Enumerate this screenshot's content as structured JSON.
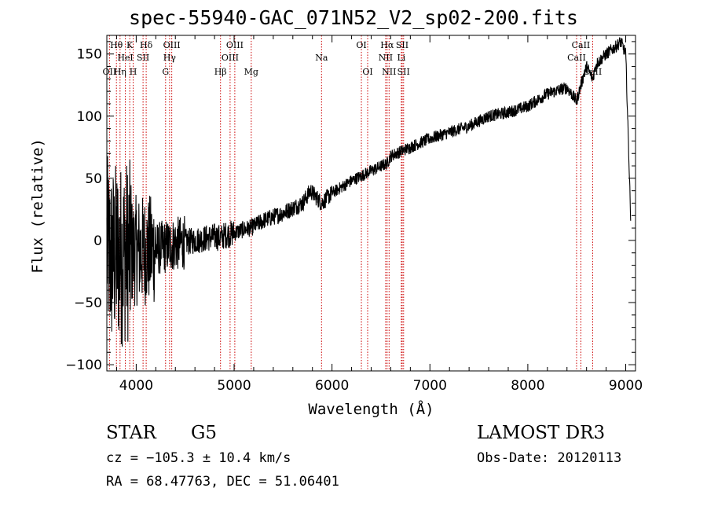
{
  "header": {
    "title": "spec-55940-GAC_071N52_V2_sp02-200.fits"
  },
  "info": {
    "object_class": "STAR",
    "subclass": "G5",
    "survey": "LAMOST DR3",
    "cz": "cz = −105.3 ± 10.4 km/s",
    "obs_date": "Obs-Date: 20120113",
    "coords": "RA =  68.47763, DEC =  51.06401"
  },
  "chart_data": {
    "type": "line",
    "title": "spec-55940-GAC_071N52_V2_sp02-200.fits",
    "xlabel": "Wavelength (Å)",
    "ylabel": "Flux (relative)",
    "xlim": [
      3700,
      9100
    ],
    "ylim": [
      -105,
      165
    ],
    "xticks": [
      4000,
      5000,
      6000,
      7000,
      8000,
      9000
    ],
    "yticks": [
      -100,
      -50,
      0,
      50,
      100,
      150
    ],
    "grid": false,
    "series_color": "#000000",
    "marker_color": "#cc0000",
    "spectrum": {
      "name": "flux",
      "x": [
        3700,
        3750,
        3800,
        3850,
        3900,
        3950,
        4000,
        4100,
        4200,
        4300,
        4400,
        4600,
        4800,
        4861,
        4900,
        5000,
        5100,
        5172,
        5300,
        5500,
        5700,
        5780,
        5893,
        6000,
        6200,
        6400,
        6563,
        6600,
        6800,
        7000,
        7200,
        7400,
        7600,
        7800,
        8000,
        8200,
        8400,
        8498,
        8542,
        8600,
        8662,
        8700,
        8800,
        8900,
        8950,
        9000,
        9050
      ],
      "y": [
        -5,
        -15,
        -10,
        -12,
        -8,
        -10,
        -8,
        -8,
        -7,
        -5,
        -3,
        0,
        3,
        2,
        4,
        6,
        9,
        10,
        16,
        22,
        30,
        40,
        30,
        38,
        48,
        56,
        62,
        68,
        75,
        82,
        87,
        92,
        100,
        103,
        108,
        118,
        123,
        112,
        125,
        140,
        130,
        142,
        150,
        156,
        160,
        150,
        20
      ]
    },
    "lines": [
      {
        "label": "Hθ",
        "wave": 3798,
        "row": 0
      },
      {
        "label": "OII",
        "wave": 3727,
        "row": 2
      },
      {
        "label": "Hη",
        "wave": 3835,
        "row": 2
      },
      {
        "label": "HeI",
        "wave": 3889,
        "row": 1
      },
      {
        "label": "K",
        "wave": 3934,
        "row": 0
      },
      {
        "label": "H",
        "wave": 3969,
        "row": 2
      },
      {
        "label": "SII",
        "wave": 4070,
        "row": 1
      },
      {
        "label": "Hδ",
        "wave": 4102,
        "row": 0
      },
      {
        "label": "G",
        "wave": 4300,
        "row": 2
      },
      {
        "label": "Hγ",
        "wave": 4341,
        "row": 1
      },
      {
        "label": "OIII",
        "wave": 4363,
        "row": 0
      },
      {
        "label": "Hβ",
        "wave": 4861,
        "row": 2
      },
      {
        "label": "OIII",
        "wave": 4959,
        "row": 1
      },
      {
        "label": "OIII",
        "wave": 5007,
        "row": 0
      },
      {
        "label": "Mg",
        "wave": 5175,
        "row": 2
      },
      {
        "label": "Na",
        "wave": 5893,
        "row": 1
      },
      {
        "label": "OI",
        "wave": 6300,
        "row": 0
      },
      {
        "label": "OI",
        "wave": 6364,
        "row": 2
      },
      {
        "label": "NII",
        "wave": 6548,
        "row": 1
      },
      {
        "label": "Hα",
        "wave": 6563,
        "row": 0
      },
      {
        "label": "NII",
        "wave": 6583,
        "row": 2
      },
      {
        "label": "Li",
        "wave": 6708,
        "row": 1
      },
      {
        "label": "SII",
        "wave": 6717,
        "row": 0
      },
      {
        "label": "SII",
        "wave": 6731,
        "row": 2
      },
      {
        "label": "CaII",
        "wave": 8498,
        "row": 1
      },
      {
        "label": "CaII",
        "wave": 8542,
        "row": 0
      },
      {
        "label": "CaII",
        "wave": 8662,
        "row": 2
      }
    ]
  }
}
